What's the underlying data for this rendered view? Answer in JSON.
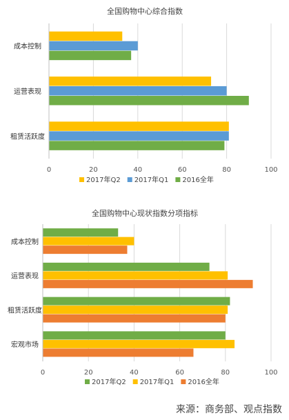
{
  "chart_data": [
    {
      "type": "bar",
      "orientation": "horizontal",
      "title": "全国购物中心综合指数",
      "categories": [
        "成本控制",
        "运营表现",
        "租赁活跃度"
      ],
      "series": [
        {
          "name": "2017年Q2",
          "color": "#FFC000",
          "values": [
            33,
            73,
            81
          ]
        },
        {
          "name": "2017年Q1",
          "color": "#5B9BD5",
          "values": [
            40,
            80,
            81
          ]
        },
        {
          "name": "2016全年",
          "color": "#70AD47",
          "values": [
            37,
            90,
            79
          ]
        }
      ],
      "xlim": [
        0,
        100
      ],
      "xticks": [
        "0",
        "20",
        "40",
        "60",
        "80",
        "100"
      ],
      "grid": true,
      "legend": "bottom"
    },
    {
      "type": "bar",
      "orientation": "horizontal",
      "title": "全国购物中心现状指数分项指标",
      "categories": [
        "成本控制",
        "运营表现",
        "租赁活跃度",
        "宏观市场"
      ],
      "series": [
        {
          "name": "2017年Q2",
          "color": "#70AD47",
          "values": [
            33,
            73,
            82,
            80
          ]
        },
        {
          "name": "2017年Q1",
          "color": "#FFC000",
          "values": [
            40,
            81,
            81,
            84
          ]
        },
        {
          "name": "2016全年",
          "color": "#ED7D31",
          "values": [
            37,
            92,
            80,
            66
          ]
        }
      ],
      "xlim": [
        0,
        100
      ],
      "xticks": [
        "0",
        "20",
        "40",
        "60",
        "80",
        "100"
      ],
      "grid": true,
      "legend": "bottom"
    }
  ],
  "source": "来源：商务部、观点指数"
}
